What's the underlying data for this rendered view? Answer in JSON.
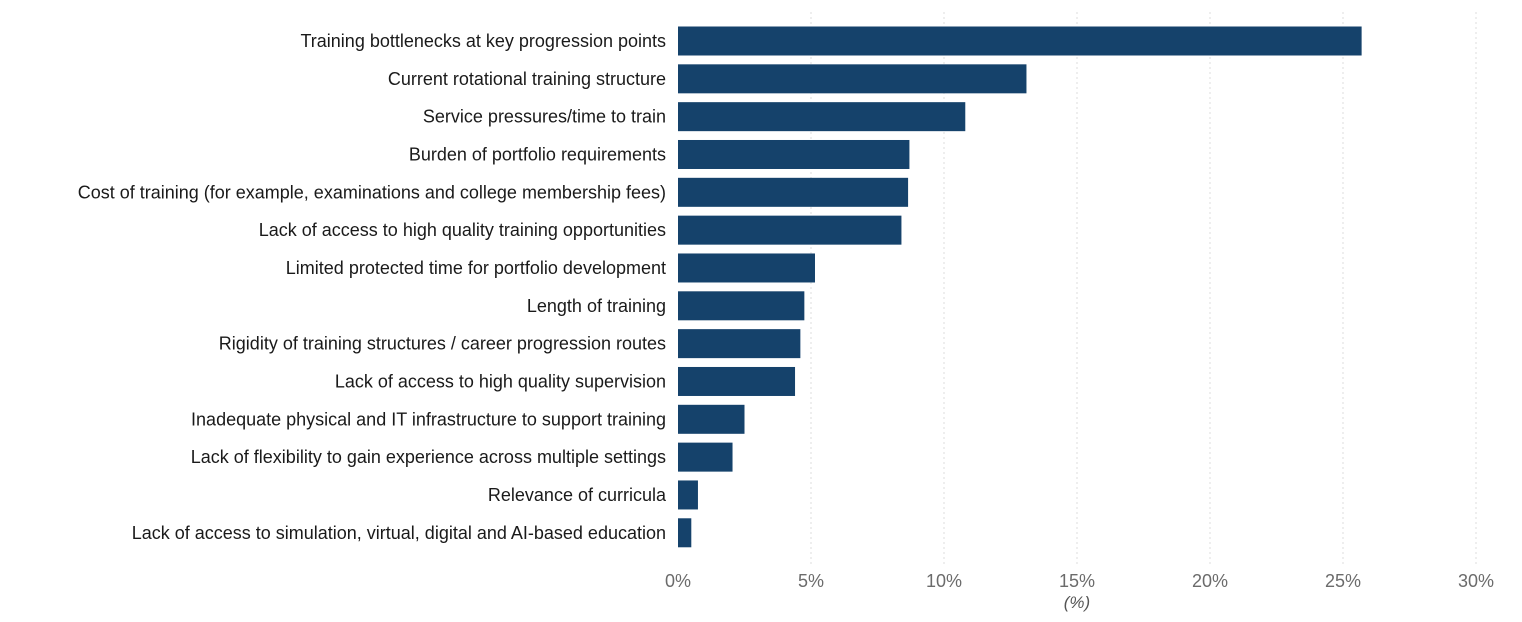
{
  "chart_data": {
    "type": "bar",
    "orientation": "horizontal",
    "categories": [
      "Training bottlenecks at key progression points",
      "Current rotational training structure",
      "Service pressures/time to train",
      "Burden of portfolio requirements",
      "Cost of training (for example, examinations and college membership fees)",
      "Lack of access to high quality training opportunities",
      "Limited protected time for portfolio development",
      "Length of training",
      "Rigidity of training structures / career progression routes",
      "Lack of access to high quality supervision",
      "Inadequate physical and IT infrastructure to support training",
      "Lack of flexibility to gain experience across multiple settings",
      "Relevance of curricula",
      "Lack of access to simulation, virtual, digital and AI-based education"
    ],
    "values": [
      25.7,
      13.1,
      10.8,
      8.7,
      8.65,
      8.4,
      5.15,
      4.75,
      4.6,
      4.4,
      2.5,
      2.05,
      0.75,
      0.5
    ],
    "xlim": [
      0,
      30
    ],
    "xticks": [
      0,
      5,
      10,
      15,
      20,
      25,
      30
    ],
    "xtick_labels": [
      "0%",
      "5%",
      "10%",
      "15%",
      "20%",
      "25%",
      "30%"
    ],
    "xlabel": "(%)",
    "ylabel": "",
    "title": "",
    "grid": "vertical-dotted",
    "legend": "none",
    "bar_color": "#15426b"
  }
}
